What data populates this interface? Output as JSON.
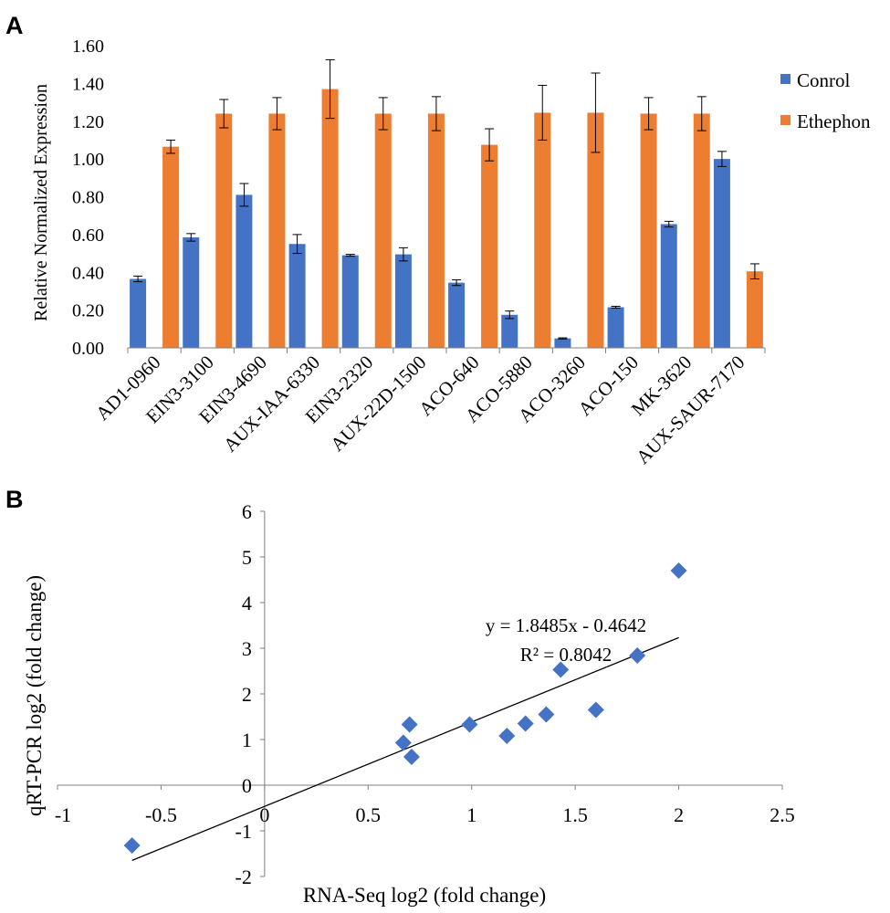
{
  "colors": {
    "control": "#4472C4",
    "ethephon": "#ED7D31",
    "scatter": "#4472C4",
    "axis": "#808080",
    "text": "#000000"
  },
  "panel_labels": {
    "a": "A",
    "b": "B"
  },
  "chart_data": [
    {
      "type": "bar",
      "panel": "A",
      "title": "",
      "xlabel": "",
      "ylabel": "Relative Normalized Expression",
      "ylim": [
        0,
        1.6
      ],
      "yticks": [
        "0.00",
        "0.20",
        "0.40",
        "0.60",
        "0.80",
        "1.00",
        "1.20",
        "1.40",
        "1.60"
      ],
      "categories": [
        "AD1-0960",
        "EIN3-3100",
        "EIN3-4690",
        "AUX-IAA-6330",
        "EIN3-2320",
        "AUX-22D-1500",
        "ACO-640",
        "ACO-5880",
        "ACO-3260",
        "ACO-150",
        "MK-3620",
        "AUX-SAUR-7170"
      ],
      "series": [
        {
          "name": "Conrol",
          "values": [
            0.365,
            0.585,
            0.81,
            0.55,
            0.49,
            0.495,
            0.345,
            0.175,
            0.05,
            0.215,
            0.655,
            1.0
          ],
          "errors": [
            0.015,
            0.02,
            0.06,
            0.05,
            0.005,
            0.035,
            0.015,
            0.02,
            0.003,
            0.005,
            0.015,
            0.04
          ]
        },
        {
          "name": "Ethephon",
          "values": [
            1.065,
            1.24,
            1.24,
            1.37,
            1.24,
            1.24,
            1.075,
            1.245,
            1.245,
            1.24,
            1.24,
            0.405
          ],
          "errors": [
            0.035,
            0.075,
            0.085,
            0.155,
            0.085,
            0.09,
            0.085,
            0.145,
            0.21,
            0.085,
            0.09,
            0.04
          ]
        }
      ],
      "legend": "right"
    },
    {
      "type": "scatter",
      "panel": "B",
      "title": "",
      "xlabel": "RNA-Seq log2 (fold change)",
      "ylabel": "qRT-PCR log2 (fold change)",
      "xlim": [
        -1,
        2.5
      ],
      "ylim": [
        -2,
        6
      ],
      "xticks": [
        "-1",
        "-0.5",
        "0",
        "0.5",
        "1",
        "1.5",
        "2",
        "2.5"
      ],
      "yticks": [
        "-2",
        "-1",
        "0",
        "1",
        "2",
        "3",
        "4",
        "5",
        "6"
      ],
      "x": [
        -0.64,
        0.67,
        0.7,
        0.71,
        0.99,
        1.17,
        1.26,
        1.36,
        1.43,
        1.6,
        1.8,
        2.0
      ],
      "y": [
        -1.32,
        0.93,
        1.33,
        0.62,
        1.33,
        1.08,
        1.35,
        1.55,
        2.53,
        1.65,
        2.84,
        4.7
      ],
      "trendline": {
        "slope": 1.8485,
        "intercept": -0.4642,
        "x_range": [
          -0.64,
          2.0
        ]
      },
      "equation": "y = 1.8485x - 0.4642",
      "r_squared": "R² = 0.8042"
    }
  ]
}
